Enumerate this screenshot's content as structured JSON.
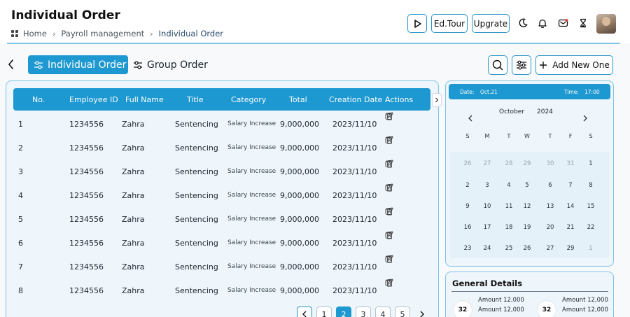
{
  "header": {
    "title": "Individual Order",
    "breadcrumb": [
      "Home",
      "Payroll management",
      "Individual Order"
    ],
    "buttons": {
      "tour": "Ed.Tour",
      "upgrade": "Upgrate"
    }
  },
  "tabs": {
    "individual": "Individual Order",
    "group": "Group Order"
  },
  "actions": {
    "add_new": "Add New One"
  },
  "table": {
    "columns": [
      "No.",
      "Employee ID",
      "Full Name",
      "Title",
      "Category",
      "Total",
      "Creation Date",
      "Actions"
    ],
    "rows": [
      [
        "1",
        "1234556",
        "Zahra",
        "Sentencing",
        "Salary Increase",
        "9,000,000",
        "2023/11/10"
      ],
      [
        "2",
        "1234556",
        "Zahra",
        "Sentencing",
        "Salary Increase",
        "9,000,000",
        "2023/11/10"
      ],
      [
        "3",
        "1234556",
        "Zahra",
        "Sentencing",
        "Salary Increase",
        "9,000,000",
        "2023/11/10"
      ],
      [
        "4",
        "1234556",
        "Zahra",
        "Sentencing",
        "Salary Increase",
        "9,000,000",
        "2023/11/10"
      ],
      [
        "5",
        "1234556",
        "Zahra",
        "Sentencing",
        "Salary Increase",
        "9,000,000",
        "2023/11/10"
      ],
      [
        "6",
        "1234556",
        "Zahra",
        "Sentencing",
        "Salary Increase",
        "9,000,000",
        "2023/11/10"
      ],
      [
        "7",
        "1234556",
        "Zahra",
        "Sentencing",
        "Salary Increase",
        "9,000,000",
        "2023/11/10"
      ],
      [
        "8",
        "1234556",
        "Zahra",
        "Sentencing",
        "Salary Increase",
        "9,000,000",
        "2023/11/10"
      ]
    ]
  },
  "pagination": {
    "pages": [
      "1",
      "2",
      "3",
      "4",
      "5"
    ],
    "current": "2"
  },
  "calendar": {
    "date_label": "Date:",
    "date_value": "Oct.21",
    "time_label": "Time:",
    "time_value": "17:00",
    "month": "October",
    "year": "2024",
    "weekdays": [
      "S",
      "M",
      "T",
      "W",
      "T",
      "F",
      "S"
    ],
    "weeks": [
      [
        "26",
        "27",
        "28",
        "29",
        "30",
        "31",
        "1"
      ],
      [
        "2",
        "3",
        "4",
        "5",
        "6",
        "7",
        "8"
      ],
      [
        "9",
        "10",
        "11",
        "12",
        "13",
        "14",
        "15"
      ],
      [
        "16",
        "17",
        "18",
        "19",
        "20",
        "21",
        "22"
      ],
      [
        "23",
        "24",
        "25",
        "26",
        "27",
        "29",
        "1"
      ]
    ],
    "dim_cells": [
      [
        0,
        0
      ],
      [
        0,
        1
      ],
      [
        0,
        2
      ],
      [
        0,
        3
      ],
      [
        0,
        4
      ],
      [
        0,
        5
      ],
      [
        4,
        6
      ]
    ]
  },
  "general_details": {
    "title": "General Details",
    "cards": [
      {
        "badge": "32",
        "lines": [
          "Amount 12,000",
          "Amount 12,000"
        ]
      },
      {
        "badge": "32",
        "lines": [
          "Amount 12,000",
          "Amount 12,000"
        ]
      }
    ]
  },
  "colors": {
    "accent": "#1e98d0",
    "border": "#7ec3e6",
    "panel": "#eef6fb"
  }
}
